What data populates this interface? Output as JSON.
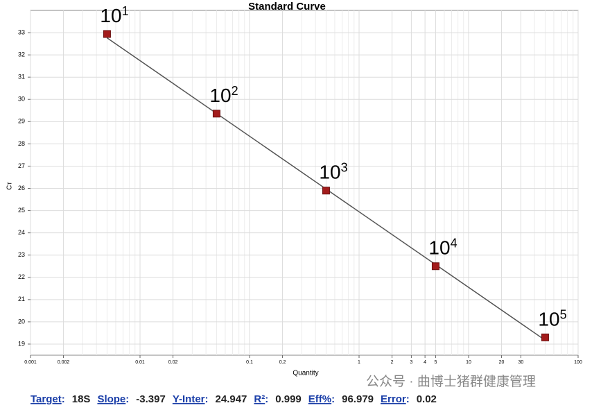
{
  "chart_data": {
    "type": "scatter",
    "title": "Standard Curve",
    "x_label": "Quantity",
    "y_label": "Cт",
    "log_x": true,
    "grid": true,
    "color": "#a31c1c",
    "line_color": "#555555",
    "x": [
      0.005,
      0.05,
      0.5,
      5,
      50
    ],
    "values": [
      32.94,
      29.36,
      25.9,
      22.5,
      19.3
    ],
    "point_labels": [
      {
        "base": "10",
        "sup": "1"
      },
      {
        "base": "10",
        "sup": "2"
      },
      {
        "base": "10",
        "sup": "3"
      },
      {
        "base": "10",
        "sup": "4"
      },
      {
        "base": "10",
        "sup": "5"
      }
    ],
    "xlim": [
      0.001,
      100
    ],
    "xticks": [
      0.001,
      0.002,
      0.01,
      0.02,
      0.1,
      0.2,
      1,
      2,
      3,
      4,
      5,
      10,
      20,
      30,
      100
    ],
    "x_minor_grid": [
      0.003,
      0.004,
      0.005,
      0.006,
      0.007,
      0.008,
      0.009,
      0.03,
      0.04,
      0.05,
      0.06,
      0.07,
      0.08,
      0.09,
      0.3,
      0.4,
      0.5,
      0.6,
      0.7,
      0.8,
      0.9,
      6,
      7,
      8,
      9,
      40,
      50,
      60,
      70,
      80,
      90
    ],
    "ylim": [
      18.5,
      34
    ],
    "yticks": [
      19,
      20,
      21,
      22,
      23,
      24,
      25,
      26,
      27,
      28,
      29,
      30,
      31,
      32,
      33
    ],
    "stats": [
      {
        "label": "Target",
        "value": "18S"
      },
      {
        "label": "Slope",
        "value": -3.397
      },
      {
        "label": "Y-Inter",
        "value": 24.947
      },
      {
        "label": "R²",
        "value": 0.999
      },
      {
        "label": "Eff%",
        "value": 96.979
      },
      {
        "label": "Error",
        "value": 0.02
      }
    ],
    "watermark": "公众号 · 曲博士猪群健康管理"
  }
}
